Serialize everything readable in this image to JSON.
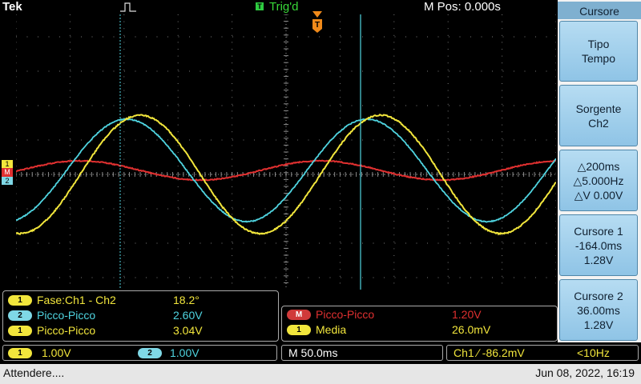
{
  "top": {
    "brand": "Tek",
    "trigger_status": "Trig'd",
    "m_pos": "M Pos: 0.000s",
    "trigger_marker": "T"
  },
  "channel_markers": {
    "ch1": "1",
    "m": "M",
    "ch2": "2"
  },
  "side_menu": {
    "title": "Cursore",
    "buttons": [
      {
        "lines": [
          "Tipo",
          "Tempo"
        ]
      },
      {
        "lines": [
          "Sorgente",
          "Ch2"
        ]
      },
      {
        "lines": [
          "△200ms",
          "△5.000Hz",
          "△V 0.00V"
        ]
      },
      {
        "lines": [
          "Cursore 1",
          "-164.0ms",
          "1.28V"
        ]
      },
      {
        "lines": [
          "Cursore 2",
          "36.00ms",
          "1.28V"
        ]
      }
    ]
  },
  "measurements_left": [
    {
      "badge": "1",
      "label": "Fase:Ch1 - Ch2",
      "value": "18.2°"
    },
    {
      "badge": "2",
      "label": "Picco-Picco",
      "value": "2.60V"
    },
    {
      "badge": "1",
      "label": "Picco-Picco",
      "value": "3.04V"
    }
  ],
  "measurements_right": [
    {
      "badge": "M",
      "label": "Picco-Picco",
      "value": "1.20V"
    },
    {
      "badge": "1",
      "label": "Media",
      "value": "26.0mV"
    }
  ],
  "bottom": {
    "ch1_badge": "1",
    "ch1_scale": "1.00V",
    "ch2_badge": "2",
    "ch2_scale": "1.00V",
    "timebase": "M 50.0ms",
    "trigger_info": "Ch1 ∕ -86.2mV",
    "freq": "<10Hz"
  },
  "status": {
    "message": "Attendere....",
    "datetime": "Jun 08, 2022, 16:19"
  },
  "colors": {
    "ch1": "#f2e63c",
    "ch2": "#4fd4e0",
    "math": "#e03030",
    "cursor": "#4fd4e0",
    "trigger": "#f08a1a"
  }
}
